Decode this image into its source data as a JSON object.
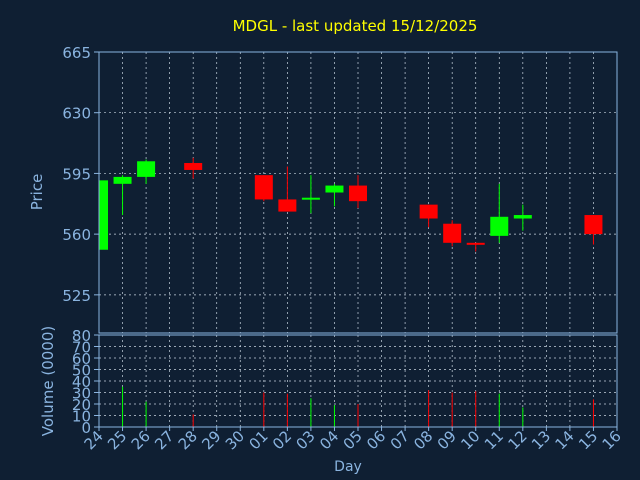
{
  "chart_data": {
    "type": "candlestick",
    "title": "MDGL - last updated 15/12/2025",
    "xlabel": "Day",
    "price_panel": {
      "ylabel": "Price",
      "ylim": [
        503,
        665
      ],
      "yticks": [
        525,
        560,
        595,
        630,
        665
      ],
      "grid": true
    },
    "volume_panel": {
      "ylabel": "Volume (0000)",
      "ylim": [
        0,
        80
      ],
      "yticks": [
        0,
        10,
        20,
        30,
        40,
        50,
        60,
        70,
        80
      ],
      "grid": true
    },
    "x_tick_labels": [
      "24",
      "25",
      "26",
      "27",
      "28",
      "29",
      "30",
      "01",
      "02",
      "03",
      "04",
      "05",
      "06",
      "07",
      "08",
      "09",
      "10",
      "11",
      "12",
      "13",
      "14",
      "15",
      "16"
    ],
    "candles": [
      {
        "x": 0,
        "open": 551,
        "close": 591,
        "high": 591,
        "low": 551,
        "volume": 0
      },
      {
        "x": 1,
        "open": 589,
        "close": 593,
        "high": 594,
        "low": 571,
        "volume": 35
      },
      {
        "x": 2,
        "open": 593,
        "close": 602,
        "high": 603,
        "low": 589,
        "volume": 22
      },
      {
        "x": 4,
        "open": 601,
        "close": 597,
        "high": 604,
        "low": 592,
        "volume": 11
      },
      {
        "x": 7,
        "open": 594,
        "close": 580,
        "high": 594,
        "low": 579,
        "volume": 30
      },
      {
        "x": 8,
        "open": 580,
        "close": 573,
        "high": 599,
        "low": 573,
        "volume": 29
      },
      {
        "x": 9,
        "open": 580,
        "close": 581,
        "high": 594,
        "low": 572,
        "volume": 25
      },
      {
        "x": 10,
        "open": 584,
        "close": 588,
        "high": 589,
        "low": 576,
        "volume": 19
      },
      {
        "x": 11,
        "open": 588,
        "close": 579,
        "high": 594,
        "low": 575,
        "volume": 20
      },
      {
        "x": 14,
        "open": 577,
        "close": 569,
        "high": 577,
        "low": 564,
        "volume": 32
      },
      {
        "x": 15,
        "open": 566,
        "close": 555,
        "high": 568,
        "low": 553,
        "volume": 30
      },
      {
        "x": 16,
        "open": 555,
        "close": 554,
        "high": 555,
        "low": 550,
        "volume": 31
      },
      {
        "x": 17,
        "open": 559,
        "close": 570,
        "high": 589,
        "low": 555,
        "volume": 29
      },
      {
        "x": 18,
        "open": 569,
        "close": 571,
        "high": 577,
        "low": 562,
        "volume": 17
      },
      {
        "x": 21,
        "open": 571,
        "close": 560,
        "high": 571,
        "low": 554,
        "volume": 24
      }
    ],
    "colors": {
      "background": "#0f1f33",
      "axis": "#8ab4e0",
      "grid": "#c8d4e0",
      "up": "#00ff00",
      "down": "#ff0000",
      "title": "#ffff00",
      "text": "#8ab4e0"
    }
  }
}
